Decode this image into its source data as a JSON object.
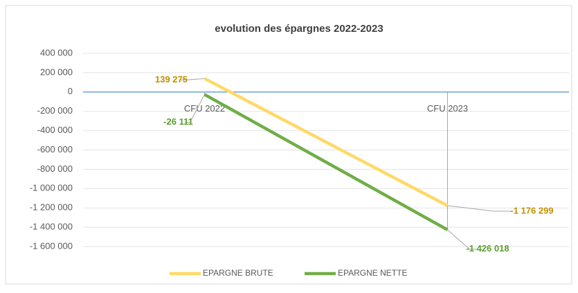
{
  "chart_data": {
    "type": "line",
    "title": "evolution des épargnes 2022-2023",
    "categories": [
      "CFU 2022",
      "CFU 2023"
    ],
    "series": [
      {
        "name": "EPARGNE BRUTE",
        "color": "#ffd966",
        "label_color": "#bf9000",
        "values": [
          139275,
          -1176299
        ],
        "value_labels": [
          "139 275",
          "-1 176 299"
        ]
      },
      {
        "name": "EPARGNE NETTE",
        "color": "#70ad47",
        "label_color": "#5b9e31",
        "values": [
          -26111,
          -1426018
        ],
        "value_labels": [
          "-26 111",
          "-1 426 018"
        ]
      }
    ],
    "ylim": [
      -1600000,
      400000
    ],
    "yticks": [
      {
        "value": 400000,
        "label": "400 000"
      },
      {
        "value": 200000,
        "label": "200 000"
      },
      0,
      {
        "value": -200000,
        "label": "-200 000"
      },
      {
        "value": -400000,
        "label": "-400 000"
      },
      {
        "value": -600000,
        "label": "-600 000"
      },
      {
        "value": -800000,
        "label": "-800 000"
      },
      {
        "value": -1000000,
        "label": "-1 000 000"
      },
      {
        "value": -1200000,
        "label": "-1 200 000"
      },
      {
        "value": -1400000,
        "label": "-1 400 000"
      },
      {
        "value": -1600000,
        "label": "-1 600 000"
      }
    ],
    "grid": true,
    "legend": "bottom"
  }
}
